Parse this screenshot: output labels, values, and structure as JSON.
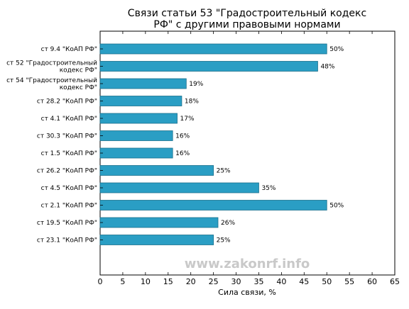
{
  "chart_data": {
    "type": "bar",
    "orientation": "horizontal",
    "title": [
      "Связи статьи 53 \"Градостроительный кодекс",
      "РФ\" с другими правовыми нормами"
    ],
    "xlabel": "Сила связи, %",
    "ylabel": "",
    "xlim": [
      0,
      65
    ],
    "xticks": [
      0,
      5,
      10,
      15,
      20,
      25,
      30,
      35,
      40,
      45,
      50,
      55,
      60,
      65
    ],
    "grid": false,
    "bar_color": "#2a9ec4",
    "categories": [
      [
        "ст 9.4 \"КоАП РФ\""
      ],
      [
        "ст 52 \"Градостроительный",
        "кодекс РФ\""
      ],
      [
        "ст 54 \"Градостроительный",
        "кодекс РФ\""
      ],
      [
        "ст 28.2 \"КоАП РФ\""
      ],
      [
        "ст 4.1 \"КоАП РФ\""
      ],
      [
        "ст 30.3 \"КоАП РФ\""
      ],
      [
        "ст 1.5 \"КоАП РФ\""
      ],
      [
        "ст 26.2 \"КоАП РФ\""
      ],
      [
        "ст 4.5 \"КоАП РФ\""
      ],
      [
        "ст 2.1 \"КоАП РФ\""
      ],
      [
        "ст 19.5 \"КоАП РФ\""
      ],
      [
        "ст 23.1 \"КоАП РФ\""
      ]
    ],
    "values": [
      50,
      48,
      19,
      18,
      17,
      16,
      16,
      25,
      35,
      50,
      26,
      25
    ],
    "data_labels": [
      "50%",
      "48%",
      "19%",
      "18%",
      "17%",
      "16%",
      "16%",
      "25%",
      "35%",
      "50%",
      "26%",
      "25%"
    ]
  },
  "watermark": "www.zakonrf.info"
}
